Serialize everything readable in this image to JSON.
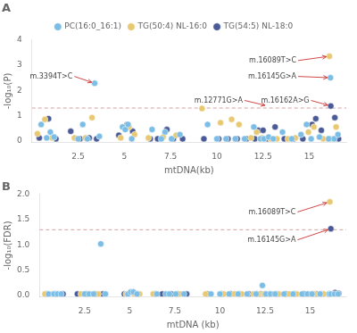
{
  "chart_data": [
    {
      "type": "scatter",
      "title": "A",
      "xlabel": "mtDNA(kb)",
      "ylabel": "-log₁₀(P)",
      "xlim": [
        0,
        17.0
      ],
      "xticks": [
        2.5,
        5,
        7.5,
        10,
        12.5,
        15
      ],
      "ylim": [
        -0.05,
        4.0
      ],
      "yticks": [
        0,
        1,
        2,
        3,
        4
      ],
      "grid": false,
      "legend": "top",
      "hlines": [
        {
          "value": 1.3,
          "color": "#d4a0a0",
          "line_style": "dashed"
        }
      ],
      "annotations": [
        {
          "text": "m.3394T>C",
          "x": 3.394,
          "y": 2.28,
          "text_x": 2.2,
          "text_y": 2.55,
          "color": "#cc3333"
        },
        {
          "text": "m.16089T>C",
          "x": 16.089,
          "y": 3.35,
          "text_x": 14.3,
          "text_y": 3.18,
          "color": "#cc3333"
        },
        {
          "text": "m.16145G>A",
          "x": 16.145,
          "y": 2.5,
          "text_x": 14.3,
          "text_y": 2.55,
          "color": "#cc3333"
        },
        {
          "text": "m.12771G>A",
          "x": 12.771,
          "y": 1.38,
          "text_x": 11.4,
          "text_y": 1.6,
          "color": "#cc3333"
        },
        {
          "text": "m.16162A>G",
          "x": 16.162,
          "y": 1.38,
          "text_x": 15.0,
          "text_y": 1.6,
          "color": "#cc3333"
        }
      ],
      "series": [
        {
          "name": "PC(16:0_16:1)",
          "color": "#7bbde4",
          "marker": "circle",
          "x": [
            0.5,
            0.8,
            1.0,
            1.2,
            2.5,
            2.75,
            3.0,
            3.394,
            3.65,
            4.9,
            5.05,
            5.2,
            5.4,
            6.5,
            7.0,
            7.2,
            7.55,
            8.0,
            9.5,
            10.0,
            10.5,
            11.0,
            11.5,
            12.0,
            12.35,
            12.55,
            12.8,
            13.05,
            13.55,
            14.05,
            14.55,
            14.85,
            15.1,
            15.55,
            16.05,
            16.145,
            16.35,
            16.55
          ],
          "values": [
            0.65,
            0.12,
            0.35,
            0.15,
            0.08,
            0.65,
            0.08,
            2.28,
            0.18,
            0.55,
            0.45,
            0.65,
            0.08,
            0.45,
            0.08,
            0.35,
            0.08,
            0.25,
            0.65,
            0.08,
            0.08,
            0.08,
            0.08,
            0.55,
            0.08,
            0.08,
            0.15,
            0.08,
            0.35,
            0.08,
            0.25,
            0.65,
            0.08,
            0.15,
            0.08,
            2.5,
            0.08,
            0.25
          ]
        },
        {
          "name": "TG(50:4) NL-16:0",
          "color": "#e8c870",
          "marker": "circle",
          "x": [
            0.3,
            0.7,
            1.1,
            2.3,
            2.9,
            3.25,
            4.8,
            5.25,
            5.55,
            6.3,
            7.1,
            7.8,
            9.2,
            10.2,
            10.8,
            11.2,
            11.85,
            12.15,
            12.45,
            12.9,
            13.25,
            13.85,
            14.25,
            14.95,
            15.25,
            15.75,
            16.089,
            16.25,
            16.45
          ],
          "values": [
            0.28,
            0.85,
            0.12,
            0.12,
            0.12,
            0.92,
            0.12,
            0.55,
            0.25,
            0.12,
            0.15,
            0.22,
            1.28,
            0.72,
            0.85,
            0.65,
            0.12,
            0.35,
            0.12,
            0.08,
            0.08,
            0.08,
            0.12,
            0.35,
            0.55,
            0.08,
            3.35,
            0.08,
            0.55
          ]
        },
        {
          "name": "TG(54:5) NL-18:0",
          "color": "#4a5a96",
          "marker": "circle",
          "x": [
            0.4,
            0.9,
            1.3,
            2.1,
            2.6,
            3.1,
            3.5,
            4.7,
            5.15,
            5.45,
            6.4,
            6.8,
            7.3,
            7.65,
            8.15,
            9.3,
            10.1,
            10.6,
            11.1,
            11.6,
            12.05,
            12.25,
            12.5,
            12.75,
            13.15,
            13.65,
            14.15,
            14.65,
            15.15,
            15.35,
            15.65,
            16.05,
            16.162,
            16.38,
            16.58
          ],
          "values": [
            0.12,
            0.88,
            0.08,
            0.38,
            0.08,
            0.12,
            0.08,
            0.22,
            0.65,
            0.38,
            0.08,
            0.08,
            0.45,
            0.08,
            0.08,
            0.08,
            0.08,
            0.08,
            0.08,
            0.08,
            0.08,
            0.42,
            0.42,
            0.08,
            0.55,
            0.08,
            0.08,
            0.08,
            0.65,
            0.88,
            0.42,
            0.08,
            1.38,
            0.92,
            0.08
          ]
        }
      ]
    },
    {
      "type": "scatter",
      "title": "B",
      "xlabel": "mtDNA (kb)",
      "ylabel": "-log₁₀(FDR)",
      "xlim": [
        0,
        17.0
      ],
      "xticks": [
        2.5,
        5,
        7.5,
        10,
        12.5,
        15
      ],
      "ylim": [
        -0.02,
        2.0
      ],
      "yticks": [
        {
          "value": 0.0,
          "label": "0.0"
        },
        0.5,
        {
          "value": 1.0,
          "label": "1.0"
        },
        1.5,
        {
          "value": 2.0,
          "label": "2.0"
        }
      ],
      "grid": false,
      "legend": false,
      "hlines": [
        {
          "value": 1.3,
          "color": "#d4a0a0",
          "line_style": "dashed"
        }
      ],
      "annotations": [
        {
          "text": "m.16089T>C",
          "x": 16.089,
          "y": 1.85,
          "text_x": 14.2,
          "text_y": 1.65,
          "color": "#cc3333"
        },
        {
          "text": "m.16145G>A",
          "x": 16.145,
          "y": 1.32,
          "text_x": 14.2,
          "text_y": 1.1,
          "color": "#cc3333"
        }
      ],
      "series": [
        {
          "name": "PC(16:0_16:1)",
          "color": "#7bbde4",
          "marker": "circle",
          "x": [
            0.5,
            0.8,
            1.0,
            1.2,
            2.5,
            2.75,
            3.0,
            3.394,
            3.65,
            4.9,
            5.05,
            5.2,
            5.4,
            6.5,
            7.0,
            7.2,
            7.55,
            8.0,
            9.5,
            10.0,
            10.5,
            11.0,
            11.5,
            12.0,
            12.35,
            12.55,
            12.8,
            13.05,
            13.55,
            14.05,
            14.55,
            14.85,
            15.1,
            15.55,
            16.05,
            16.145,
            16.35,
            16.55
          ],
          "values": [
            0.03,
            0.03,
            0.03,
            0.03,
            0.03,
            0.03,
            0.03,
            1.02,
            0.03,
            0.03,
            0.07,
            0.07,
            0.03,
            0.03,
            0.03,
            0.03,
            0.03,
            0.03,
            0.03,
            0.03,
            0.03,
            0.03,
            0.03,
            0.03,
            0.2,
            0.03,
            0.03,
            0.03,
            0.03,
            0.03,
            0.03,
            0.03,
            0.03,
            0.03,
            0.03,
            0.03,
            0.03,
            0.03
          ]
        },
        {
          "name": "TG(50:4) NL-16:0",
          "color": "#e8c870",
          "marker": "circle",
          "x": [
            0.3,
            0.7,
            1.1,
            2.3,
            2.9,
            3.25,
            4.8,
            5.25,
            5.55,
            6.3,
            7.1,
            7.8,
            9.2,
            10.2,
            10.8,
            11.2,
            11.85,
            12.15,
            12.45,
            12.9,
            13.25,
            13.85,
            14.25,
            14.95,
            15.25,
            15.75,
            16.089,
            16.25,
            16.45
          ],
          "values": [
            0.03,
            0.03,
            0.03,
            0.03,
            0.03,
            0.03,
            0.03,
            0.03,
            0.03,
            0.03,
            0.03,
            0.03,
            0.03,
            0.03,
            0.03,
            0.03,
            0.03,
            0.03,
            0.03,
            0.03,
            0.03,
            0.03,
            0.03,
            0.03,
            0.03,
            0.03,
            1.85,
            0.03,
            0.03
          ]
        },
        {
          "name": "TG(54:5) NL-18:0",
          "color": "#4a5a96",
          "marker": "circle",
          "x": [
            0.4,
            0.9,
            1.3,
            2.1,
            2.6,
            3.1,
            3.5,
            4.7,
            5.15,
            5.45,
            6.4,
            6.8,
            7.3,
            7.65,
            8.15,
            9.3,
            10.1,
            10.6,
            11.1,
            11.6,
            12.05,
            12.25,
            12.5,
            12.75,
            13.15,
            13.65,
            14.15,
            14.65,
            15.15,
            15.35,
            15.65,
            16.05,
            16.145,
            16.38,
            16.58
          ],
          "values": [
            0.03,
            0.03,
            0.03,
            0.03,
            0.03,
            0.03,
            0.03,
            0.03,
            0.06,
            0.03,
            0.03,
            0.03,
            0.03,
            0.03,
            0.03,
            0.03,
            0.03,
            0.03,
            0.03,
            0.03,
            0.03,
            0.03,
            0.03,
            0.03,
            0.03,
            0.03,
            0.03,
            0.03,
            0.03,
            0.03,
            0.03,
            0.03,
            1.32,
            0.06,
            0.04
          ]
        }
      ]
    }
  ]
}
